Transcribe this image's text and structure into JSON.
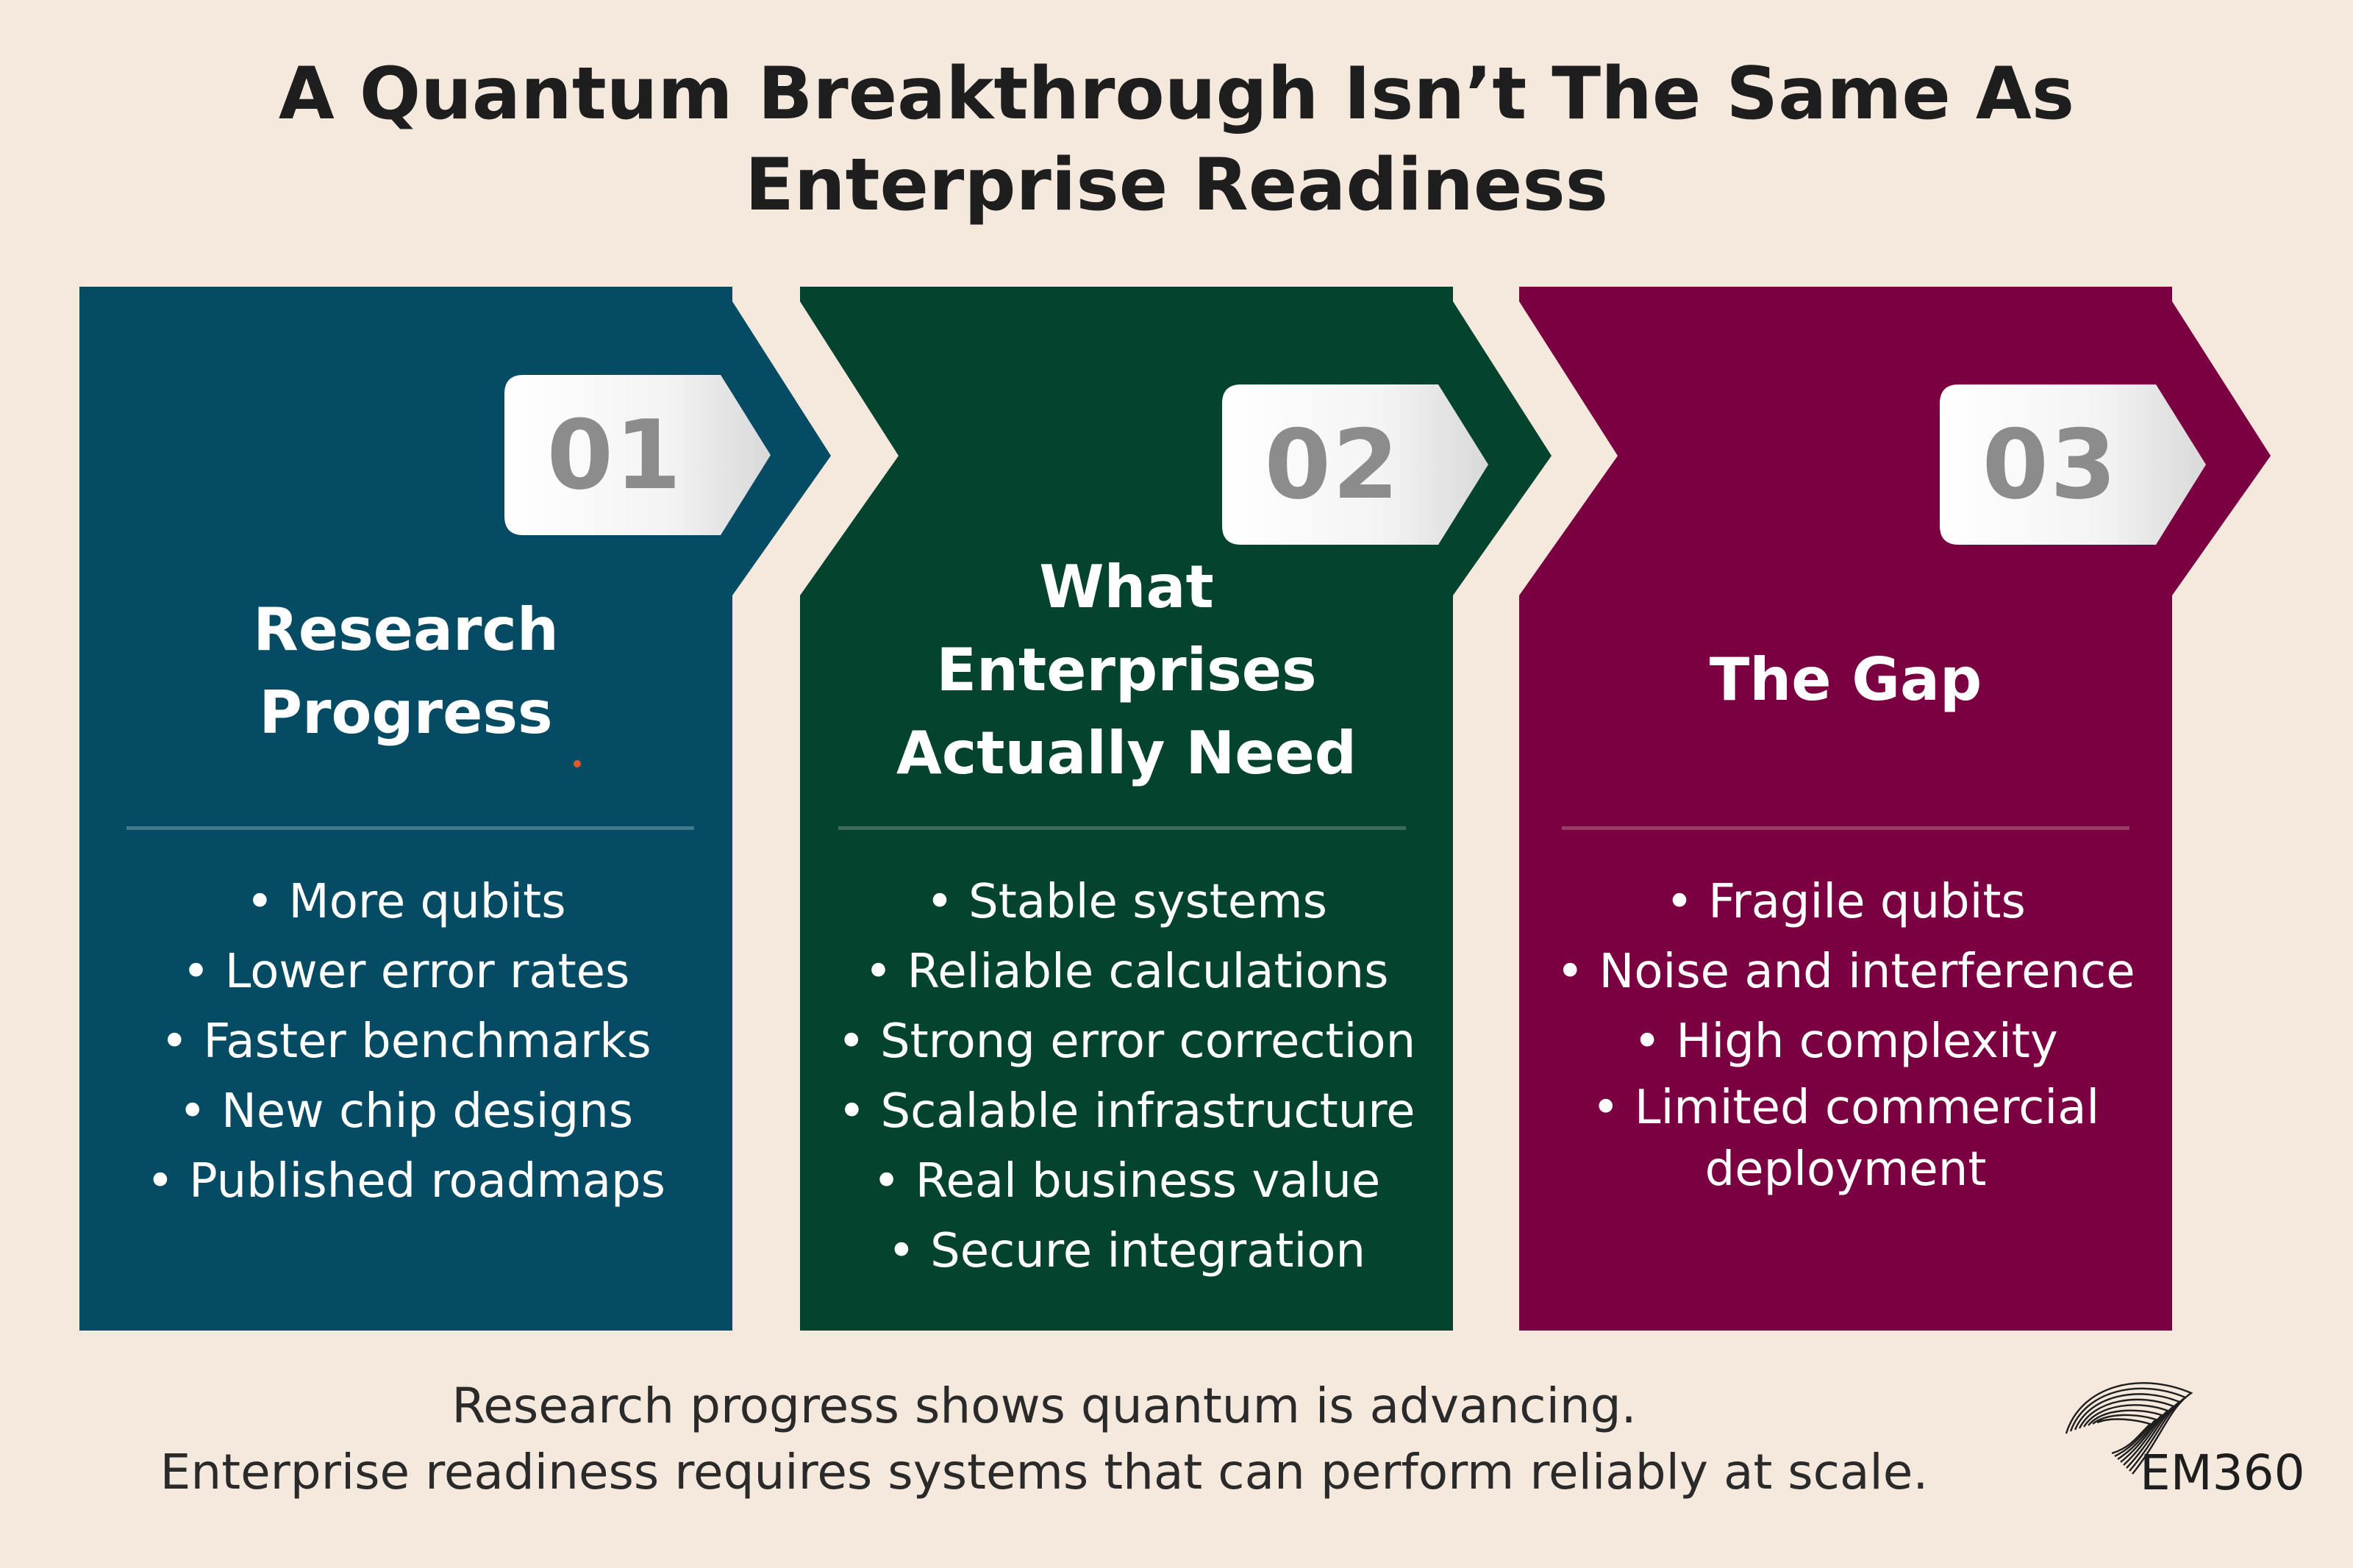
{
  "title": {
    "line1": "A Quantum Breakthrough Isn’t The Same As",
    "line2": "Enterprise Readiness"
  },
  "colors": {
    "background": "#f5e9de",
    "panel_1": "#044b63",
    "panel_2": "#04442f",
    "panel_3": "#7b0041",
    "badge_number": "#8c8c8c"
  },
  "panels": [
    {
      "number": "01",
      "heading_lines": [
        "Research",
        "Progress"
      ],
      "items": [
        "More qubits",
        "Lower error rates",
        "Faster benchmarks",
        "New chip designs",
        "Published roadmaps"
      ]
    },
    {
      "number": "02",
      "heading_lines": [
        "What",
        "Enterprises",
        "Actually Need"
      ],
      "items": [
        "Stable systems",
        "Reliable calculations",
        "Strong error correction",
        "Scalable infrastructure",
        "Real business value",
        "Secure integration"
      ]
    },
    {
      "number": "03",
      "heading_lines": [
        "The Gap"
      ],
      "items": [
        "Fragile qubits",
        "Noise and interference",
        "High complexity",
        "Limited commercial",
        "deployment"
      ]
    }
  ],
  "footer": {
    "line1": "Research progress shows quantum is advancing.",
    "line2": "Enterprise readiness requires systems that can perform reliably at scale."
  },
  "logo": {
    "text": "EM360",
    "icon": "em360-swirl-logo-icon"
  }
}
